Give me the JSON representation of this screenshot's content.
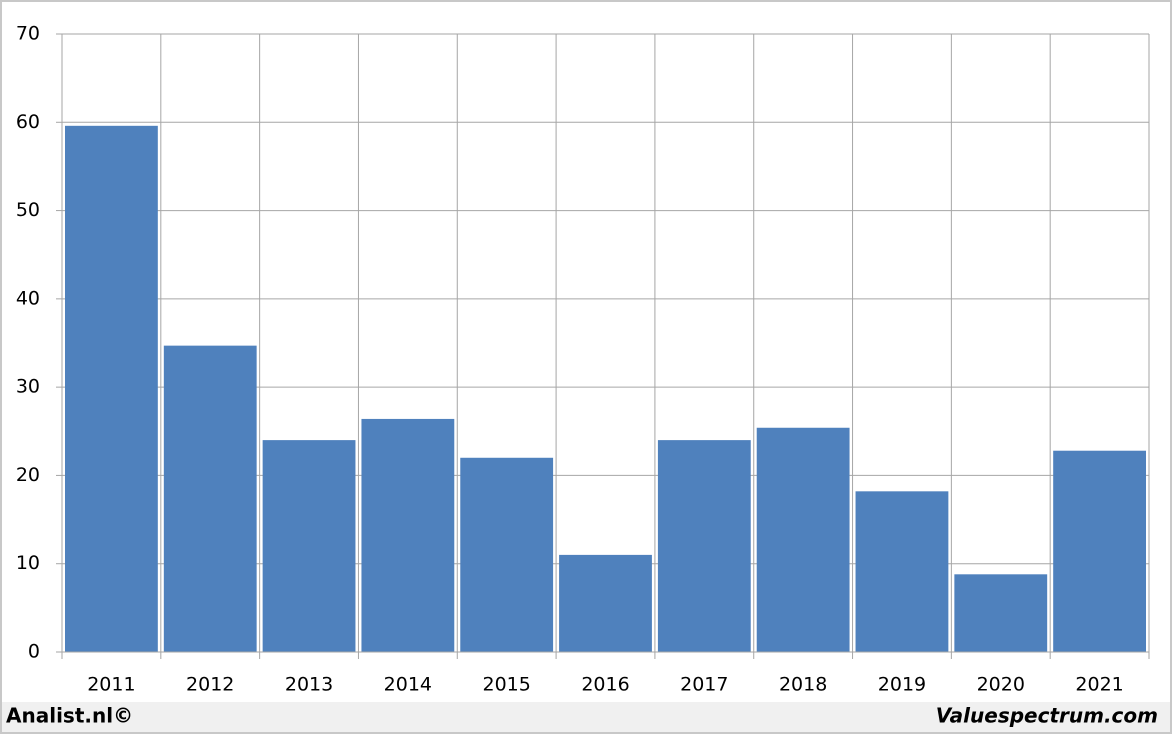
{
  "chart_data": {
    "type": "bar",
    "categories": [
      "2011",
      "2012",
      "2013",
      "2014",
      "2015",
      "2016",
      "2017",
      "2018",
      "2019",
      "2020",
      "2021"
    ],
    "values": [
      59.6,
      34.7,
      24.0,
      26.4,
      22.0,
      11.0,
      24.0,
      25.4,
      18.2,
      8.8,
      22.8
    ],
    "color": "#4f81bd",
    "ylim": [
      0,
      70
    ],
    "yticks": [
      0,
      10,
      20,
      30,
      40,
      50,
      60,
      70
    ],
    "grid": true,
    "source": "Analist.nl©",
    "credit": "Valuespectrum.com"
  }
}
